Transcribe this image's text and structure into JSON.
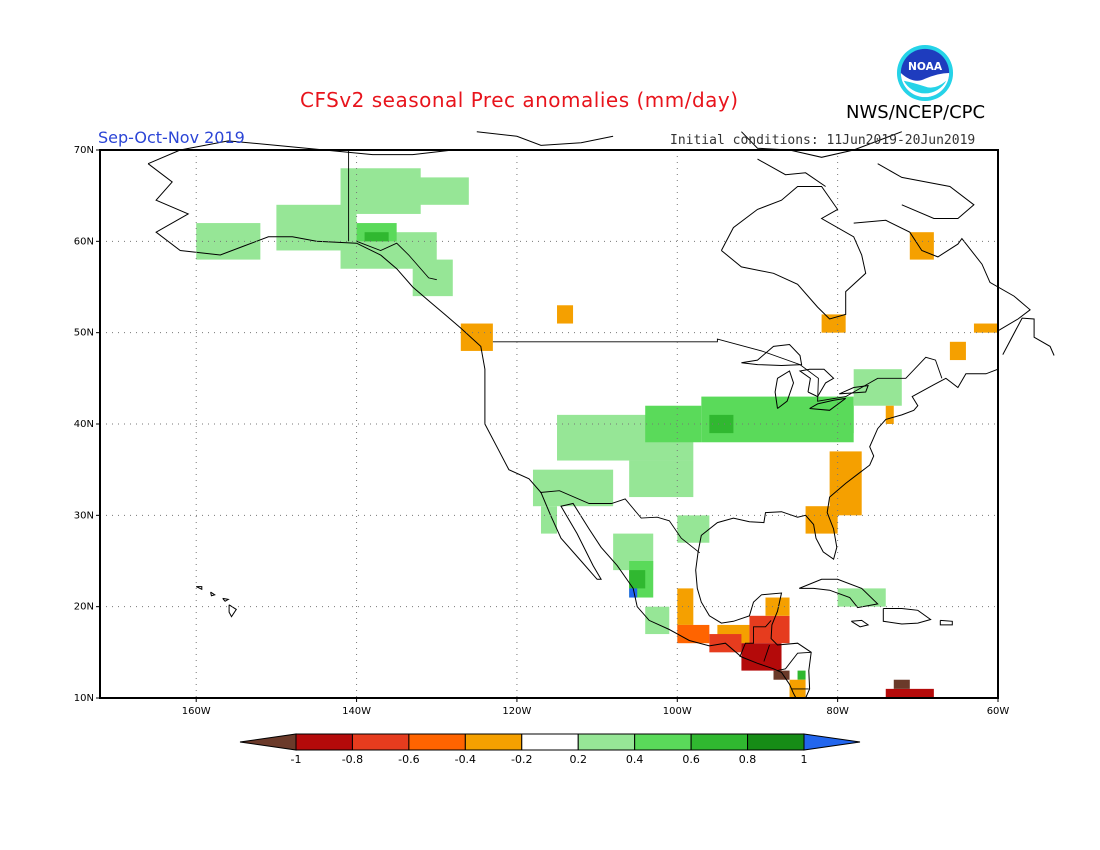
{
  "header": {
    "title": "CFSv2 seasonal Prec anomalies (mm/day)",
    "agency": "NWS/NCEP/CPC",
    "season": "Sep-Oct-Nov 2019",
    "initial_conditions": "Initial conditions: 11Jun2019-20Jun2019",
    "logo_text": "NOAA"
  },
  "map": {
    "lon_range": [
      -172,
      -60
    ],
    "lat_range": [
      10,
      70
    ],
    "lat_ticks": [
      {
        "value": 70,
        "label": "70N"
      },
      {
        "value": 60,
        "label": "60N"
      },
      {
        "value": 50,
        "label": "50N"
      },
      {
        "value": 40,
        "label": "40N"
      },
      {
        "value": 30,
        "label": "30N"
      },
      {
        "value": 20,
        "label": "20N"
      },
      {
        "value": 10,
        "label": "10N"
      }
    ],
    "lon_ticks": [
      {
        "value": -160,
        "label": "160W"
      },
      {
        "value": -140,
        "label": "140W"
      },
      {
        "value": -120,
        "label": "120W"
      },
      {
        "value": -100,
        "label": "100W"
      },
      {
        "value": -80,
        "label": "80W"
      },
      {
        "value": -60,
        "label": "60W"
      }
    ],
    "grid": "dotted",
    "cell_deg": 1,
    "colors": {
      "m10": "#6b3a2a",
      "m08": "#b40a0a",
      "m06": "#e63c1e",
      "m04": "#ff6400",
      "m02": "#f5a000",
      "p02": "#96e696",
      "p04": "#5ada5a",
      "p06": "#30b830",
      "p08": "#168c16",
      "p10": "#2266ee",
      "coast": "#000000"
    },
    "anomaly_regions": [
      {
        "level": "p02",
        "lon": [
          -160,
          -152
        ],
        "lat": [
          58,
          62
        ]
      },
      {
        "level": "p02",
        "lon": [
          -150,
          -140
        ],
        "lat": [
          59,
          64
        ]
      },
      {
        "level": "p02",
        "lon": [
          -142,
          -132
        ],
        "lat": [
          63,
          68
        ]
      },
      {
        "level": "p02",
        "lon": [
          -135,
          -126
        ],
        "lat": [
          64,
          67
        ]
      },
      {
        "level": "p02",
        "lon": [
          -142,
          -130
        ],
        "lat": [
          57,
          61
        ]
      },
      {
        "level": "p02",
        "lon": [
          -133,
          -128
        ],
        "lat": [
          54,
          58
        ]
      },
      {
        "level": "p04",
        "lon": [
          -140,
          -135
        ],
        "lat": [
          60,
          62
        ]
      },
      {
        "level": "p06",
        "lon": [
          -139,
          -136
        ],
        "lat": [
          60,
          61
        ]
      },
      {
        "level": "p02",
        "lon": [
          -115,
          -98
        ],
        "lat": [
          36,
          41
        ]
      },
      {
        "level": "p02",
        "lon": [
          -118,
          -108
        ],
        "lat": [
          31,
          35
        ]
      },
      {
        "level": "p02",
        "lon": [
          -106,
          -98
        ],
        "lat": [
          32,
          36
        ]
      },
      {
        "level": "p04",
        "lon": [
          -104,
          -97
        ],
        "lat": [
          38,
          42
        ]
      },
      {
        "level": "p04",
        "lon": [
          -97,
          -78
        ],
        "lat": [
          38,
          43
        ]
      },
      {
        "level": "p06",
        "lon": [
          -96,
          -93
        ],
        "lat": [
          39,
          41
        ]
      },
      {
        "level": "p04",
        "lon": [
          -88,
          -78
        ],
        "lat": [
          39,
          42
        ]
      },
      {
        "level": "p02",
        "lon": [
          -78,
          -72
        ],
        "lat": [
          42,
          46
        ]
      },
      {
        "level": "p02",
        "lon": [
          -108,
          -103
        ],
        "lat": [
          24,
          28
        ]
      },
      {
        "level": "p02",
        "lon": [
          -100,
          -96
        ],
        "lat": [
          27,
          30
        ]
      },
      {
        "level": "p04",
        "lon": [
          -106,
          -103
        ],
        "lat": [
          21,
          25
        ]
      },
      {
        "level": "p06",
        "lon": [
          -106,
          -104
        ],
        "lat": [
          22,
          24
        ]
      },
      {
        "level": "p10",
        "lon": [
          -106,
          -105
        ],
        "lat": [
          21,
          22
        ]
      },
      {
        "level": "p02",
        "lon": [
          -104,
          -101
        ],
        "lat": [
          17,
          20
        ]
      },
      {
        "level": "p02",
        "lon": [
          -117,
          -115
        ],
        "lat": [
          28,
          31
        ]
      },
      {
        "level": "p02",
        "lon": [
          -80,
          -74
        ],
        "lat": [
          20,
          22
        ]
      },
      {
        "level": "m02",
        "lon": [
          -81,
          -77
        ],
        "lat": [
          30,
          37
        ]
      },
      {
        "level": "m02",
        "lon": [
          -84,
          -80
        ],
        "lat": [
          28,
          31
        ]
      },
      {
        "level": "m02",
        "lon": [
          -100,
          -98
        ],
        "lat": [
          18,
          22
        ]
      },
      {
        "level": "m02",
        "lon": [
          -95,
          -91
        ],
        "lat": [
          16,
          18
        ]
      },
      {
        "level": "m04",
        "lon": [
          -100,
          -96
        ],
        "lat": [
          16,
          18
        ]
      },
      {
        "level": "m06",
        "lon": [
          -96,
          -92
        ],
        "lat": [
          15,
          17
        ]
      },
      {
        "level": "m08",
        "lon": [
          -92,
          -87
        ],
        "lat": [
          13,
          16
        ]
      },
      {
        "level": "m06",
        "lon": [
          -91,
          -86
        ],
        "lat": [
          16,
          19
        ]
      },
      {
        "level": "m02",
        "lon": [
          -89,
          -86
        ],
        "lat": [
          19,
          21
        ]
      },
      {
        "level": "m10",
        "lon": [
          -88,
          -86
        ],
        "lat": [
          12,
          13
        ]
      },
      {
        "level": "p10",
        "lon": [
          -85,
          -84
        ],
        "lat": [
          10,
          11
        ]
      },
      {
        "level": "p06",
        "lon": [
          -85,
          -84
        ],
        "lat": [
          12,
          13
        ]
      },
      {
        "level": "m02",
        "lon": [
          -86,
          -84
        ],
        "lat": [
          10,
          12
        ]
      },
      {
        "level": "m08",
        "lon": [
          -74,
          -68
        ],
        "lat": [
          10,
          11
        ]
      },
      {
        "level": "m10",
        "lon": [
          -73,
          -71
        ],
        "lat": [
          11,
          12
        ]
      },
      {
        "level": "m02",
        "lon": [
          -71,
          -68
        ],
        "lat": [
          58,
          61
        ]
      },
      {
        "level": "m02",
        "lon": [
          -82,
          -79
        ],
        "lat": [
          50,
          52
        ]
      },
      {
        "level": "m02",
        "lon": [
          -127,
          -123
        ],
        "lat": [
          48,
          51
        ]
      },
      {
        "level": "m02",
        "lon": [
          -115,
          -113
        ],
        "lat": [
          51,
          53
        ]
      },
      {
        "level": "m02",
        "lon": [
          -63,
          -60
        ],
        "lat": [
          50,
          51
        ]
      },
      {
        "level": "m02",
        "lon": [
          -66,
          -64
        ],
        "lat": [
          47,
          49
        ]
      },
      {
        "level": "m02",
        "lon": [
          -74,
          -73
        ],
        "lat": [
          40,
          42
        ]
      }
    ]
  },
  "colorbar": {
    "labels": [
      "-1",
      "-0.8",
      "-0.6",
      "-0.4",
      "-0.2",
      "0.2",
      "0.4",
      "0.6",
      "0.8",
      "1"
    ],
    "colors": [
      "#6b3a2a",
      "#b40a0a",
      "#e63c1e",
      "#ff6400",
      "#f5a000",
      "#ffffff",
      "#96e696",
      "#5ada5a",
      "#30b830",
      "#168c16",
      "#2266ee"
    ]
  }
}
